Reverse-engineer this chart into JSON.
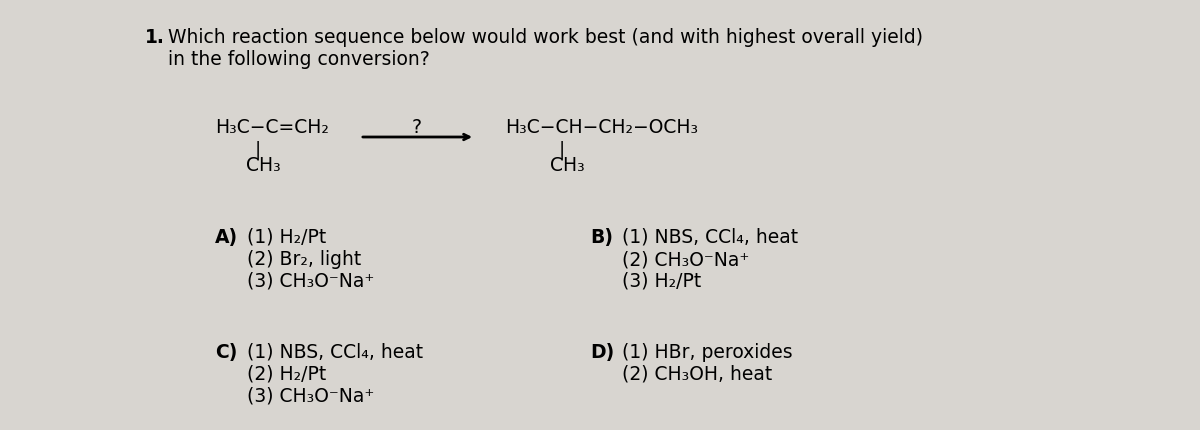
{
  "background_color": "#d8d5d0",
  "question_number": "1.",
  "question_text_line1": "Which reaction sequence below would work best (and with highest overall yield)",
  "question_text_line2": "in the following conversion?",
  "arrow_label": "?",
  "option_A_label": "A)",
  "option_A_lines": [
    "(1) H₂/Pt",
    "(2) Br₂, light",
    "(3) CH₃O⁻Na⁺"
  ],
  "option_B_label": "B)",
  "option_B_lines": [
    "(1) NBS, CCl₄, heat",
    "(2) CH₃O⁻Na⁺",
    "(3) H₂/Pt"
  ],
  "option_C_label": "C)",
  "option_C_lines": [
    "(1) NBS, CCl₄, heat",
    "(2) H₂/Pt",
    "(3) CH₃O⁻Na⁺"
  ],
  "option_D_label": "D)",
  "option_D_lines": [
    "(1) HBr, peroxides",
    "(2) CH₃OH, heat"
  ],
  "font_size_question": 13.5,
  "font_size_chem": 13.5,
  "font_size_options": 13.5
}
